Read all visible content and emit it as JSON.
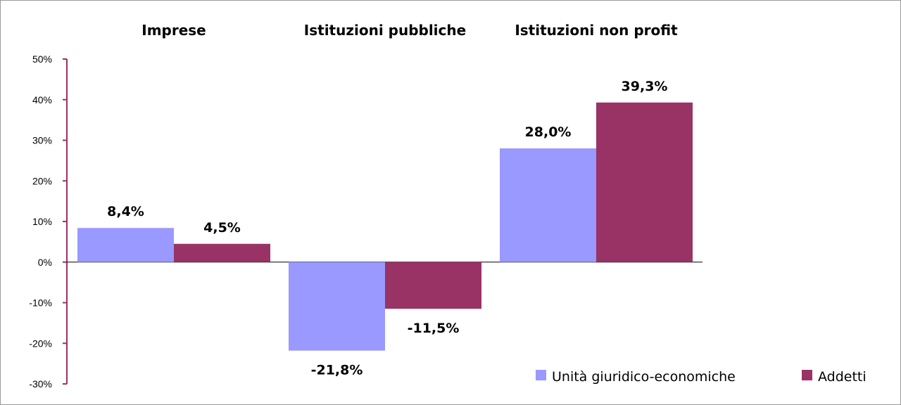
{
  "chart_data": {
    "type": "bar",
    "categories": [
      "Imprese",
      "Istituzioni pubbliche",
      "Istituzioni non profit"
    ],
    "series": [
      {
        "name": "Unità giuridico-economiche",
        "values": [
          8.4,
          -21.8,
          28.0
        ],
        "labels": [
          "8,4%",
          "-21,8%",
          "28,0%"
        ],
        "color": "#9999ff"
      },
      {
        "name": "Addetti",
        "values": [
          4.5,
          -11.5,
          39.3
        ],
        "labels": [
          "4,5%",
          "-11,5%",
          "39,3%"
        ],
        "color": "#993366"
      }
    ],
    "yticks": [
      "50%",
      "40%",
      "30%",
      "20%",
      "10%",
      "0%",
      "-10%",
      "-20%",
      "-30%"
    ],
    "ylim": [
      -30,
      50
    ],
    "axis_color": "#993366",
    "legend_position": "bottom-right",
    "grid": false
  }
}
